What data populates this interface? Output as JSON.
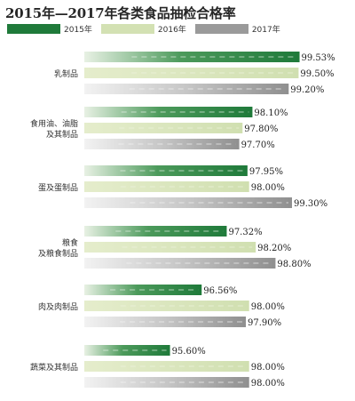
{
  "chart_data": {
    "type": "bar",
    "orientation": "horizontal",
    "title": "2015年—2017年各类食品抽检合格率",
    "categories": [
      [
        "乳制品"
      ],
      [
        "食用油、油脂",
        "及其制品"
      ],
      [
        "蛋及蛋制品"
      ],
      [
        "粮食",
        "及粮食制品"
      ],
      [
        "肉及肉制品"
      ],
      [
        "蔬菜及其制品"
      ]
    ],
    "series": [
      {
        "name": "2015年",
        "values": [
          99.53,
          98.1,
          97.95,
          97.32,
          96.56,
          95.6
        ],
        "labels": [
          "99.53%",
          "98.10%",
          "97.95%",
          "97.32%",
          "96.56%",
          "95.60%"
        ]
      },
      {
        "name": "2016年",
        "values": [
          99.5,
          97.8,
          98.0,
          98.2,
          98.0,
          98.0
        ],
        "labels": [
          "99.50%",
          "97.80%",
          "98.00%",
          "98.20%",
          "98.00%",
          "98.00%"
        ]
      },
      {
        "name": "2017年",
        "values": [
          99.2,
          97.7,
          99.3,
          98.8,
          97.9,
          98.0
        ],
        "labels": [
          "99.20%",
          "97.70%",
          "99.30%",
          "98.80%",
          "97.90%",
          "98.00%"
        ]
      }
    ],
    "colors": {
      "2015年": [
        "#e8f1e4",
        "#4c9a5b",
        "#1f7a3a"
      ],
      "2016年": [
        "#e5edcc",
        "#d0dfb0"
      ],
      "2017年": [
        "#f2f2f2",
        "#c6c6c6",
        "#8f8f8f"
      ]
    },
    "legend_position": "top-left",
    "grid": false
  }
}
